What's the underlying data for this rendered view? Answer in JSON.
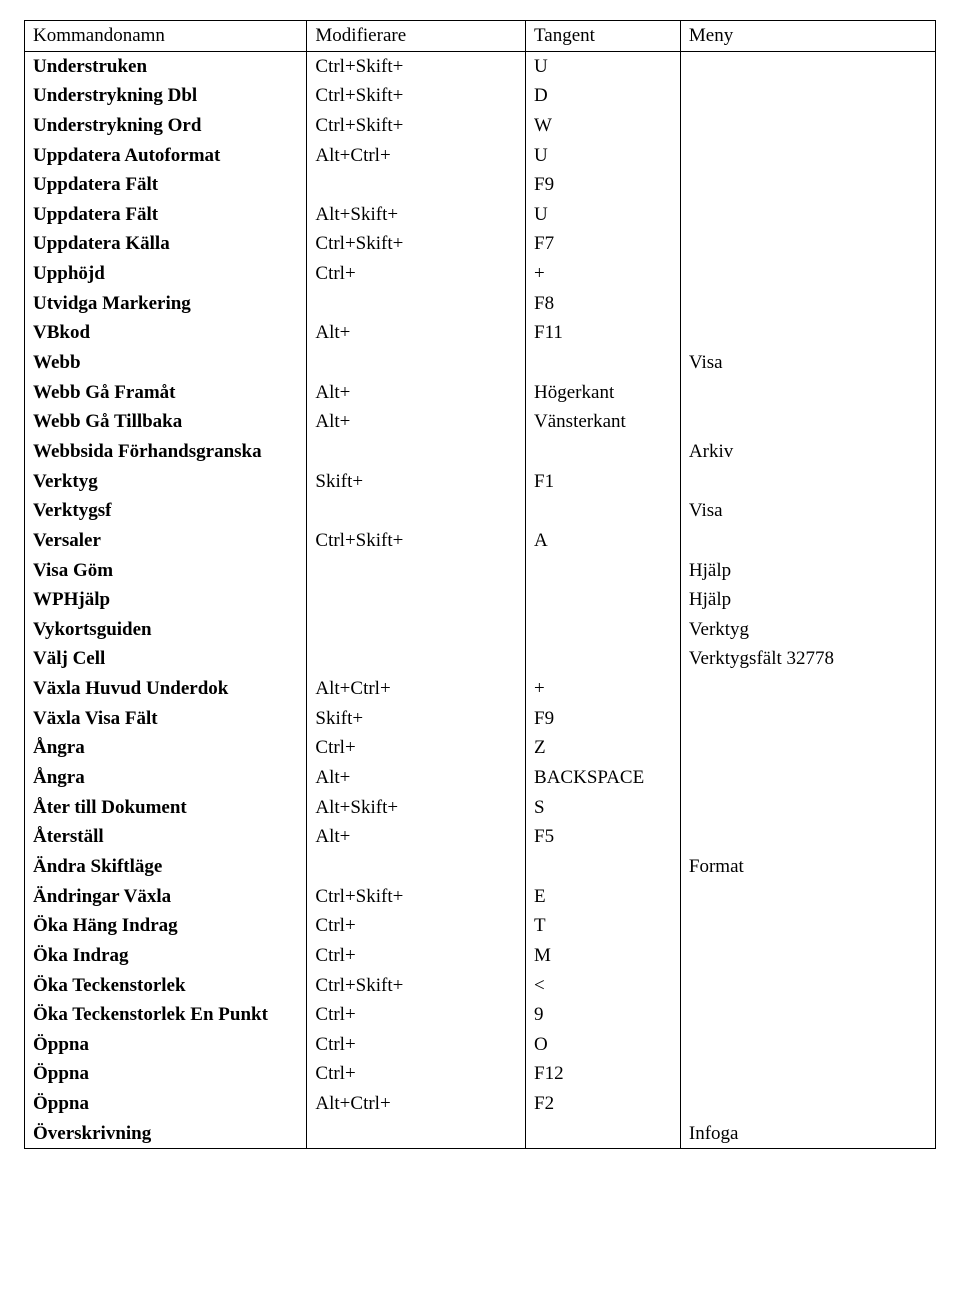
{
  "table": {
    "columns": [
      "Kommandonamn",
      "Modifierare",
      "Tangent",
      "Meny"
    ],
    "col_widths_pct": [
      31,
      24,
      17,
      28
    ],
    "border_color": "#000000",
    "background_color": "#ffffff",
    "font_family": "Times New Roman",
    "header_fontsize_pt": 14,
    "body_fontsize_pt": 14,
    "cmd_bold": true,
    "rows": [
      [
        "Understruken",
        "Ctrl+Skift+",
        "U",
        ""
      ],
      [
        "Understrykning Dbl",
        "Ctrl+Skift+",
        "D",
        ""
      ],
      [
        "Understrykning Ord",
        "Ctrl+Skift+",
        "W",
        ""
      ],
      [
        "Uppdatera Autoformat",
        "Alt+Ctrl+",
        "U",
        ""
      ],
      [
        "Uppdatera Fält",
        "",
        "F9",
        ""
      ],
      [
        "Uppdatera Fält",
        "Alt+Skift+",
        "U",
        ""
      ],
      [
        "Uppdatera Källa",
        "Ctrl+Skift+",
        "F7",
        ""
      ],
      [
        "Upphöjd",
        "Ctrl+",
        "+",
        ""
      ],
      [
        "Utvidga Markering",
        "",
        "F8",
        ""
      ],
      [
        "VBkod",
        "Alt+",
        "F11",
        ""
      ],
      [
        "Webb",
        "",
        "",
        "Visa"
      ],
      [
        "Webb Gå Framåt",
        "Alt+",
        "Högerkant",
        ""
      ],
      [
        "Webb Gå Tillbaka",
        "Alt+",
        "Vänsterkant",
        ""
      ],
      [
        "Webbsida Förhandsgranska",
        "",
        "",
        "Arkiv"
      ],
      [
        "Verktyg",
        "Skift+",
        "F1",
        ""
      ],
      [
        "Verktygsf",
        "",
        "",
        "Visa"
      ],
      [
        "Versaler",
        "Ctrl+Skift+",
        "A",
        ""
      ],
      [
        "Visa Göm",
        "",
        "",
        "Hjälp"
      ],
      [
        "WPHjälp",
        "",
        "",
        "Hjälp"
      ],
      [
        "Vykortsguiden",
        "",
        "",
        "Verktyg"
      ],
      [
        "Välj Cell",
        "",
        "",
        "Verktygsfält 32778"
      ],
      [
        "Växla Huvud Underdok",
        "Alt+Ctrl+",
        "+",
        ""
      ],
      [
        "Växla Visa Fält",
        "Skift+",
        "F9",
        ""
      ],
      [
        "Ångra",
        "Ctrl+",
        "Z",
        ""
      ],
      [
        "Ångra",
        "Alt+",
        "BACKSPACE",
        ""
      ],
      [
        "Åter till Dokument",
        "Alt+Skift+",
        "S",
        ""
      ],
      [
        "Återställ",
        "Alt+",
        "F5",
        ""
      ],
      [
        "Ändra Skiftläge",
        "",
        "",
        "Format"
      ],
      [
        "Ändringar Växla",
        "Ctrl+Skift+",
        "E",
        ""
      ],
      [
        "Öka Häng Indrag",
        "Ctrl+",
        "T",
        ""
      ],
      [
        "Öka Indrag",
        "Ctrl+",
        "M",
        ""
      ],
      [
        "Öka Teckenstorlek",
        "Ctrl+Skift+",
        "<",
        ""
      ],
      [
        "Öka Teckenstorlek En Punkt",
        "Ctrl+",
        "9",
        ""
      ],
      [
        "Öppna",
        "Ctrl+",
        "O",
        ""
      ],
      [
        "Öppna",
        "Ctrl+",
        "F12",
        ""
      ],
      [
        "Öppna",
        "Alt+Ctrl+",
        "F2",
        ""
      ],
      [
        "Överskrivning",
        "",
        "",
        "Infoga"
      ]
    ]
  }
}
